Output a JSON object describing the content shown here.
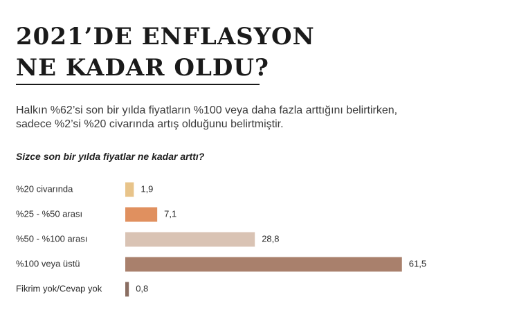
{
  "title": "2021’DE ENFLASYON\nNE KADAR OLDU?",
  "intro": {
    "line1": "Halkın %62’si son bir yılda fiyatların %100 veya daha fazla arttığını belirtirken,",
    "line2": "sadece %2’si %20 civarında artış olduğunu belirtmiştir."
  },
  "chart_data": {
    "type": "bar",
    "orientation": "horizontal",
    "title": "Sizce son bir yılda fiyatlar ne kadar arttı?",
    "categories": [
      "%20 civarında",
      "%25  - %50 arası",
      "%50 - %100 arası",
      "%100 veya üstü",
      "Fikrim yok/Cevap yok"
    ],
    "values": [
      1.9,
      7.1,
      28.8,
      61.5,
      0.8
    ],
    "value_labels": [
      "1,9",
      "7,1",
      "28,8",
      "61,5",
      "0,8"
    ],
    "colors": [
      "#e8c48a",
      "#e0905f",
      "#d9c3b4",
      "#a9806c",
      "#8a6e62"
    ],
    "xlim": [
      0,
      70
    ],
    "grid": false,
    "legend": "none"
  }
}
